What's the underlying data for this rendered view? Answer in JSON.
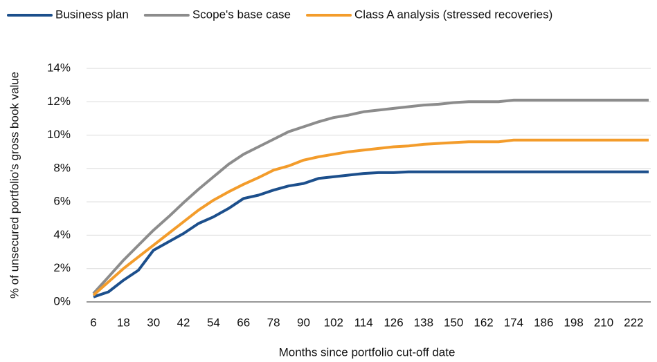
{
  "chart_data": {
    "type": "line",
    "y_label": "% of unsecured portfolio's gross book value",
    "x_label": "Months since portfolio cut-off date",
    "x": [
      6,
      12,
      18,
      24,
      30,
      36,
      42,
      48,
      54,
      60,
      66,
      72,
      78,
      84,
      90,
      96,
      102,
      108,
      114,
      120,
      126,
      132,
      138,
      144,
      150,
      156,
      162,
      168,
      174,
      180,
      186,
      192,
      198,
      204,
      210,
      216,
      222,
      228
    ],
    "xlim": [
      6,
      228
    ],
    "xticks": [
      6,
      18,
      30,
      42,
      54,
      66,
      78,
      90,
      102,
      114,
      126,
      138,
      150,
      162,
      174,
      186,
      198,
      210,
      222
    ],
    "ylim": [
      0,
      14
    ],
    "yticks": [
      {
        "value": 0,
        "label": "0%"
      },
      {
        "value": 2,
        "label": "2%"
      },
      {
        "value": 4,
        "label": "4%"
      },
      {
        "value": 6,
        "label": "6%"
      },
      {
        "value": 8,
        "label": "8%"
      },
      {
        "value": 10,
        "label": "10%"
      },
      {
        "value": 12,
        "label": "12%"
      },
      {
        "value": 14,
        "label": "14%"
      }
    ],
    "grid": true,
    "legend": "top",
    "series": [
      {
        "name": "Business plan",
        "color": "#1c4f8c",
        "values": [
          0.3,
          0.6,
          1.3,
          1.9,
          3.1,
          3.6,
          4.1,
          4.7,
          5.1,
          5.6,
          6.2,
          6.4,
          6.7,
          6.95,
          7.1,
          7.4,
          7.5,
          7.6,
          7.7,
          7.75,
          7.75,
          7.8,
          7.8,
          7.8,
          7.8,
          7.8,
          7.8,
          7.8,
          7.8,
          7.8,
          7.8,
          7.8,
          7.8,
          7.8,
          7.8,
          7.8,
          7.8,
          7.8
        ]
      },
      {
        "name": "Scope's base case",
        "color": "#8c8c8c",
        "values": [
          0.5,
          1.5,
          2.5,
          3.4,
          4.3,
          5.1,
          5.95,
          6.75,
          7.5,
          8.25,
          8.85,
          9.3,
          9.75,
          10.2,
          10.5,
          10.8,
          11.05,
          11.2,
          11.4,
          11.5,
          11.6,
          11.7,
          11.8,
          11.85,
          11.95,
          12.0,
          12.0,
          12.0,
          12.1,
          12.1,
          12.1,
          12.1,
          12.1,
          12.1,
          12.1,
          12.1,
          12.1,
          12.1
        ]
      },
      {
        "name": "Class A analysis (stressed recoveries)",
        "color": "#f39c2b",
        "values": [
          0.4,
          1.2,
          2.0,
          2.7,
          3.4,
          4.1,
          4.8,
          5.5,
          6.1,
          6.6,
          7.05,
          7.45,
          7.9,
          8.15,
          8.5,
          8.7,
          8.85,
          9.0,
          9.1,
          9.2,
          9.3,
          9.35,
          9.45,
          9.5,
          9.55,
          9.6,
          9.6,
          9.6,
          9.7,
          9.7,
          9.7,
          9.7,
          9.7,
          9.7,
          9.7,
          9.7,
          9.7,
          9.7
        ]
      }
    ]
  }
}
